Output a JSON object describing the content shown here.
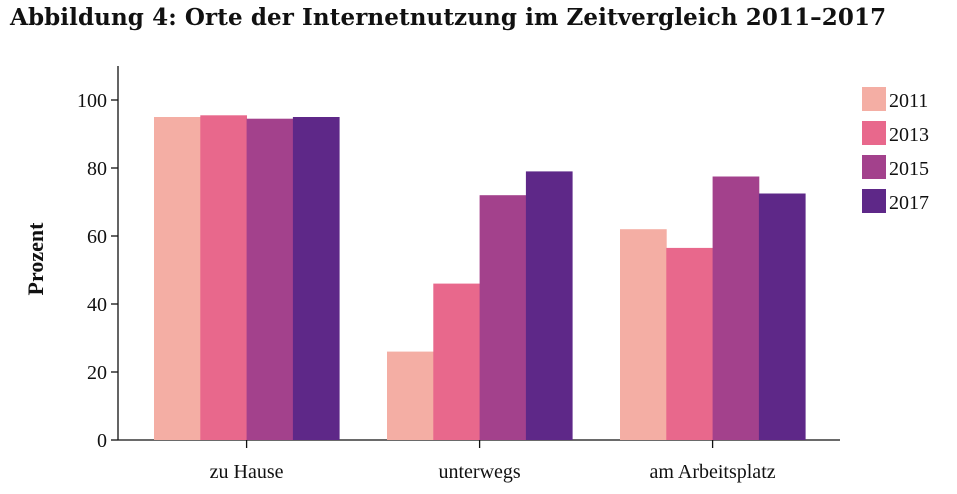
{
  "chart_data": {
    "type": "bar",
    "title": "Abbildung 4: Orte der Internetnutzung im Zeitvergleich 2011–2017",
    "xlabel": "",
    "ylabel": "Prozent",
    "ylim": [
      0,
      110
    ],
    "yticks": [
      0,
      20,
      40,
      60,
      80,
      100
    ],
    "categories": [
      "zu Hause",
      "unterwegs",
      "am Arbeitsplatz"
    ],
    "series": [
      {
        "name": "2011",
        "color": "#f4aea4",
        "values": [
          95,
          26,
          62
        ]
      },
      {
        "name": "2013",
        "color": "#e8688c",
        "values": [
          95.5,
          46,
          56.5
        ]
      },
      {
        "name": "2015",
        "color": "#a3418c",
        "values": [
          94.5,
          72,
          77.5
        ]
      },
      {
        "name": "2017",
        "color": "#5e2888",
        "values": [
          95,
          79,
          72.5
        ]
      }
    ],
    "grid": false,
    "legend_position": "right"
  }
}
